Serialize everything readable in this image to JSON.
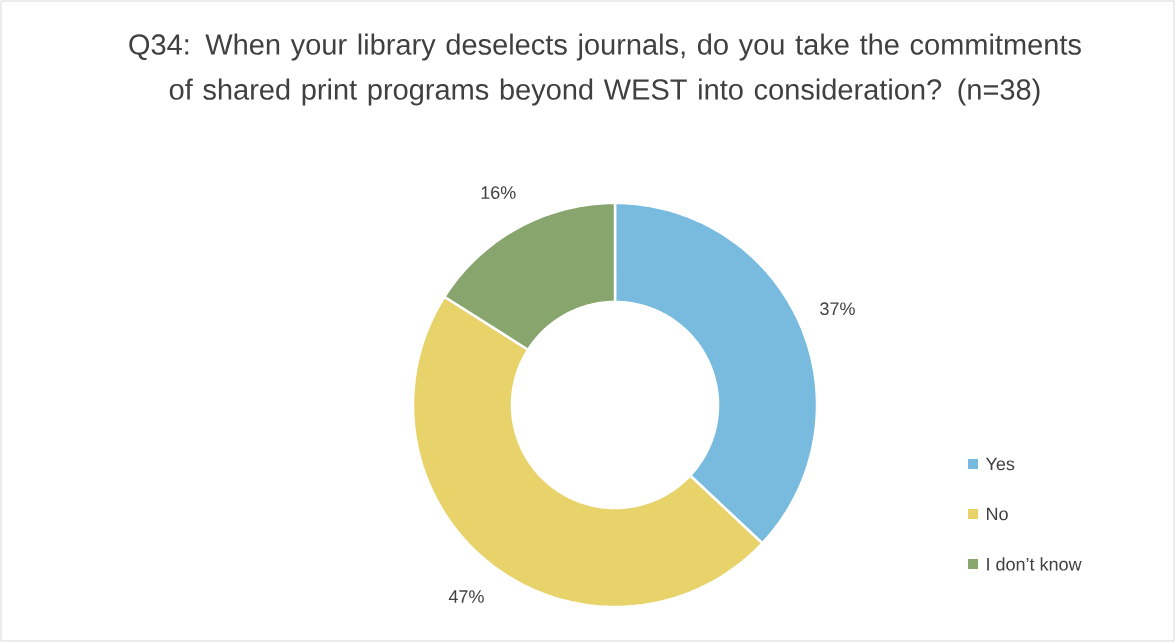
{
  "chart_data": {
    "type": "donut",
    "title": "Q34: When your library deselects journals, do you take the commitments of shared print programs beyond WEST into consideration? (n=38)",
    "categories": [
      "Yes",
      "No",
      "I don’t know"
    ],
    "values": [
      37,
      47,
      16
    ],
    "colors": [
      "#78bbdf",
      "#e8d26a",
      "#87a56d"
    ],
    "value_labels": [
      "37%",
      "47%",
      "16%"
    ],
    "legend": "right"
  }
}
